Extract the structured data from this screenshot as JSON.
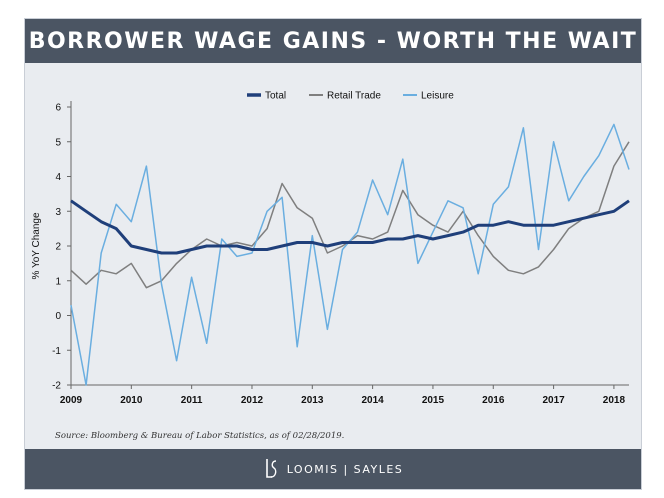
{
  "header": {
    "title": "BORROWER WAGE GAINS - WORTH THE WAIT"
  },
  "source": "Source: Bloomberg & Bureau of Labor Statistics, as of 02/28/2019.",
  "footer": {
    "brand": "LOOMIS | SAYLES"
  },
  "colors": {
    "header_bg": "#4b5563",
    "panel_bg": "#e9ecf0",
    "total": "#1f3f7a",
    "retail": "#7f7f7f",
    "leisure": "#6aaee0"
  },
  "chart_data": {
    "type": "line",
    "title": "",
    "xlabel": "",
    "ylabel": "% YoY Change",
    "xlim": [
      2009.0,
      2018.25
    ],
    "ylim": [
      -2,
      6
    ],
    "yticks": [
      -2,
      -1,
      0,
      1,
      2,
      3,
      4,
      5,
      6
    ],
    "xticks": [
      "2009",
      "2010",
      "2011",
      "2012",
      "2013",
      "2014",
      "2015",
      "2016",
      "2017",
      "2018"
    ],
    "legend_position": "top-center",
    "grid": false,
    "series": [
      {
        "name": "Total",
        "x": [
          2009.0,
          2009.25,
          2009.5,
          2009.75,
          2010.0,
          2010.25,
          2010.5,
          2010.75,
          2011.0,
          2011.25,
          2011.5,
          2011.75,
          2012.0,
          2012.25,
          2012.5,
          2012.75,
          2013.0,
          2013.25,
          2013.5,
          2013.75,
          2014.0,
          2014.25,
          2014.5,
          2014.75,
          2015.0,
          2015.25,
          2015.5,
          2015.75,
          2016.0,
          2016.25,
          2016.5,
          2016.75,
          2017.0,
          2017.25,
          2017.5,
          2017.75,
          2018.0,
          2018.25
        ],
        "y": [
          3.3,
          3.0,
          2.7,
          2.5,
          2.0,
          1.9,
          1.8,
          1.8,
          1.9,
          2.0,
          2.0,
          2.0,
          1.9,
          1.9,
          2.0,
          2.1,
          2.1,
          2.0,
          2.1,
          2.1,
          2.1,
          2.2,
          2.2,
          2.3,
          2.2,
          2.3,
          2.4,
          2.6,
          2.6,
          2.7,
          2.6,
          2.6,
          2.6,
          2.7,
          2.8,
          2.9,
          3.0,
          3.3
        ]
      },
      {
        "name": "Retail Trade",
        "x": [
          2009.0,
          2009.25,
          2009.5,
          2009.75,
          2010.0,
          2010.25,
          2010.5,
          2010.75,
          2011.0,
          2011.25,
          2011.5,
          2011.75,
          2012.0,
          2012.25,
          2012.5,
          2012.75,
          2013.0,
          2013.25,
          2013.5,
          2013.75,
          2014.0,
          2014.25,
          2014.5,
          2014.75,
          2015.0,
          2015.25,
          2015.5,
          2015.75,
          2016.0,
          2016.25,
          2016.5,
          2016.75,
          2017.0,
          2017.25,
          2017.5,
          2017.75,
          2018.0,
          2018.25
        ],
        "y": [
          1.3,
          0.9,
          1.3,
          1.2,
          1.5,
          0.8,
          1.0,
          1.5,
          1.9,
          2.2,
          2.0,
          2.1,
          2.0,
          2.5,
          3.8,
          3.1,
          2.8,
          1.8,
          2.0,
          2.3,
          2.2,
          2.4,
          3.6,
          2.9,
          2.6,
          2.4,
          3.0,
          2.3,
          1.7,
          1.3,
          1.2,
          1.4,
          1.9,
          2.5,
          2.8,
          3.0,
          4.3,
          5.0
        ]
      },
      {
        "name": "Leisure",
        "x": [
          2009.0,
          2009.25,
          2009.5,
          2009.75,
          2010.0,
          2010.25,
          2010.5,
          2010.75,
          2011.0,
          2011.25,
          2011.5,
          2011.75,
          2012.0,
          2012.25,
          2012.5,
          2012.75,
          2013.0,
          2013.25,
          2013.5,
          2013.75,
          2014.0,
          2014.25,
          2014.5,
          2014.75,
          2015.0,
          2015.25,
          2015.5,
          2015.75,
          2016.0,
          2016.25,
          2016.5,
          2016.75,
          2017.0,
          2017.25,
          2017.5,
          2017.75,
          2018.0,
          2018.25
        ],
        "y": [
          0.3,
          -2.0,
          1.8,
          3.2,
          2.7,
          4.3,
          0.9,
          -1.3,
          1.1,
          -0.8,
          2.2,
          1.7,
          1.8,
          3.0,
          3.4,
          -0.9,
          2.3,
          -0.4,
          1.9,
          2.4,
          3.9,
          2.9,
          4.5,
          1.5,
          2.4,
          3.3,
          3.1,
          1.2,
          3.2,
          3.7,
          5.4,
          1.9,
          5.0,
          3.3,
          4.0,
          4.6,
          5.5,
          4.2
        ]
      }
    ]
  }
}
